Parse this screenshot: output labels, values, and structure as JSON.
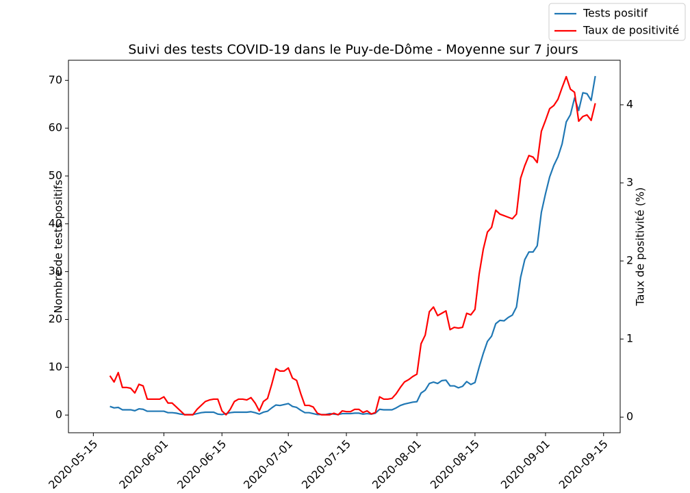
{
  "chart_data": {
    "type": "line",
    "title": "Suivi des tests COVID-19 dans le Puy-de-Dôme - Moyenne sur 7 jours",
    "ylabel": "Nombre de tests positifs",
    "y2label": "Taux de positivité (%)",
    "legend": "upper right",
    "x": [
      "2020-05-19",
      "2020-05-20",
      "2020-05-21",
      "2020-05-22",
      "2020-05-23",
      "2020-05-24",
      "2020-05-25",
      "2020-05-26",
      "2020-05-27",
      "2020-05-28",
      "2020-05-29",
      "2020-05-30",
      "2020-05-31",
      "2020-06-01",
      "2020-06-02",
      "2020-06-03",
      "2020-06-04",
      "2020-06-05",
      "2020-06-06",
      "2020-06-07",
      "2020-06-08",
      "2020-06-09",
      "2020-06-10",
      "2020-06-11",
      "2020-06-12",
      "2020-06-13",
      "2020-06-14",
      "2020-06-15",
      "2020-06-16",
      "2020-06-17",
      "2020-06-18",
      "2020-06-19",
      "2020-06-20",
      "2020-06-21",
      "2020-06-22",
      "2020-06-23",
      "2020-06-24",
      "2020-06-25",
      "2020-06-26",
      "2020-06-27",
      "2020-06-28",
      "2020-06-29",
      "2020-06-30",
      "2020-07-01",
      "2020-07-02",
      "2020-07-03",
      "2020-07-04",
      "2020-07-05",
      "2020-07-06",
      "2020-07-07",
      "2020-07-08",
      "2020-07-09",
      "2020-07-10",
      "2020-07-11",
      "2020-07-12",
      "2020-07-13",
      "2020-07-14",
      "2020-07-15",
      "2020-07-16",
      "2020-07-17",
      "2020-07-18",
      "2020-07-19",
      "2020-07-20",
      "2020-07-21",
      "2020-07-22",
      "2020-07-23",
      "2020-07-24",
      "2020-07-25",
      "2020-07-26",
      "2020-07-27",
      "2020-07-28",
      "2020-07-29",
      "2020-07-30",
      "2020-07-31",
      "2020-08-01",
      "2020-08-02",
      "2020-08-03",
      "2020-08-04",
      "2020-08-05",
      "2020-08-06",
      "2020-08-07",
      "2020-08-08",
      "2020-08-09",
      "2020-08-10",
      "2020-08-11",
      "2020-08-12",
      "2020-08-13",
      "2020-08-14",
      "2020-08-15",
      "2020-08-16",
      "2020-08-17",
      "2020-08-18",
      "2020-08-19",
      "2020-08-20",
      "2020-08-21",
      "2020-08-22",
      "2020-08-23",
      "2020-08-24",
      "2020-08-25",
      "2020-08-26",
      "2020-08-27",
      "2020-08-28",
      "2020-08-29",
      "2020-08-30",
      "2020-08-31",
      "2020-09-01",
      "2020-09-02",
      "2020-09-03",
      "2020-09-04",
      "2020-09-05",
      "2020-09-06",
      "2020-09-07",
      "2020-09-08",
      "2020-09-09",
      "2020-09-10",
      "2020-09-11",
      "2020-09-12",
      "2020-09-13"
    ],
    "series": [
      {
        "name": "Tests positif",
        "color": "#1f77b4",
        "values": [
          1.8,
          1.5,
          1.6,
          1.1,
          1.1,
          1.1,
          0.9,
          1.3,
          1.2,
          0.8,
          0.8,
          0.8,
          0.8,
          0.8,
          0.5,
          0.5,
          0.4,
          0.2,
          0.1,
          0.1,
          0.1,
          0.3,
          0.5,
          0.6,
          0.6,
          0.6,
          0.2,
          0.1,
          0.3,
          0.5,
          0.6,
          0.6,
          0.6,
          0.6,
          0.7,
          0.5,
          0.2,
          0.6,
          0.8,
          1.5,
          2.1,
          2.0,
          2.2,
          2.4,
          1.8,
          1.6,
          1.0,
          0.5,
          0.5,
          0.3,
          0.1,
          0.1,
          0.1,
          0.3,
          0.2,
          0.1,
          0.3,
          0.3,
          0.3,
          0.4,
          0.4,
          0.2,
          0.3,
          0.2,
          0.4,
          1.2,
          1.1,
          1.1,
          1.1,
          1.5,
          2.0,
          2.3,
          2.5,
          2.7,
          2.8,
          4.6,
          5.2,
          6.6,
          6.9,
          6.6,
          7.2,
          7.3,
          6.1,
          6.1,
          5.7,
          6.0,
          7.0,
          6.4,
          6.8,
          10.0,
          12.9,
          15.4,
          16.5,
          19.1,
          19.8,
          19.7,
          20.4,
          20.9,
          22.6,
          28.8,
          32.5,
          34.1,
          34.1,
          35.4,
          42.4,
          46.3,
          49.8,
          52.2,
          54.0,
          56.7,
          61.3,
          62.8,
          66.3,
          63.7,
          67.4,
          67.2,
          65.8,
          70.9
        ]
      },
      {
        "name": "Taux de positivité",
        "color": "#ff0000",
        "axis": "y2",
        "values": [
          0.53,
          0.45,
          0.57,
          0.38,
          0.38,
          0.37,
          0.31,
          0.42,
          0.4,
          0.23,
          0.23,
          0.23,
          0.23,
          0.26,
          0.18,
          0.18,
          0.13,
          0.08,
          0.03,
          0.03,
          0.03,
          0.1,
          0.15,
          0.2,
          0.22,
          0.23,
          0.23,
          0.08,
          0.03,
          0.1,
          0.2,
          0.23,
          0.23,
          0.22,
          0.25,
          0.18,
          0.08,
          0.2,
          0.24,
          0.42,
          0.62,
          0.59,
          0.59,
          0.63,
          0.5,
          0.47,
          0.3,
          0.15,
          0.15,
          0.13,
          0.05,
          0.03,
          0.03,
          0.03,
          0.05,
          0.03,
          0.08,
          0.07,
          0.07,
          0.1,
          0.1,
          0.06,
          0.08,
          0.04,
          0.06,
          0.26,
          0.23,
          0.23,
          0.24,
          0.3,
          0.38,
          0.45,
          0.48,
          0.52,
          0.55,
          0.94,
          1.05,
          1.35,
          1.41,
          1.3,
          1.33,
          1.36,
          1.12,
          1.15,
          1.14,
          1.15,
          1.33,
          1.31,
          1.38,
          1.83,
          2.15,
          2.37,
          2.43,
          2.65,
          2.6,
          2.58,
          2.56,
          2.54,
          2.6,
          3.06,
          3.22,
          3.35,
          3.33,
          3.26,
          3.66,
          3.8,
          3.95,
          3.99,
          4.07,
          4.22,
          4.36,
          4.2,
          4.16,
          3.79,
          3.85,
          3.87,
          3.8,
          4.02
        ]
      }
    ],
    "xlim": [
      "2020-05-09",
      "2020-09-19"
    ],
    "xticks": [
      "2020-05-15",
      "2020-06-01",
      "2020-06-15",
      "2020-07-01",
      "2020-07-15",
      "2020-08-01",
      "2020-08-15",
      "2020-09-01",
      "2020-09-15"
    ],
    "ylim": [
      -3.7,
      74.2
    ],
    "yticks": [
      0,
      10,
      20,
      30,
      40,
      50,
      60,
      70
    ],
    "y2lim": [
      -0.2,
      4.57
    ],
    "y2ticks": [
      0,
      1,
      2,
      3,
      4
    ]
  }
}
